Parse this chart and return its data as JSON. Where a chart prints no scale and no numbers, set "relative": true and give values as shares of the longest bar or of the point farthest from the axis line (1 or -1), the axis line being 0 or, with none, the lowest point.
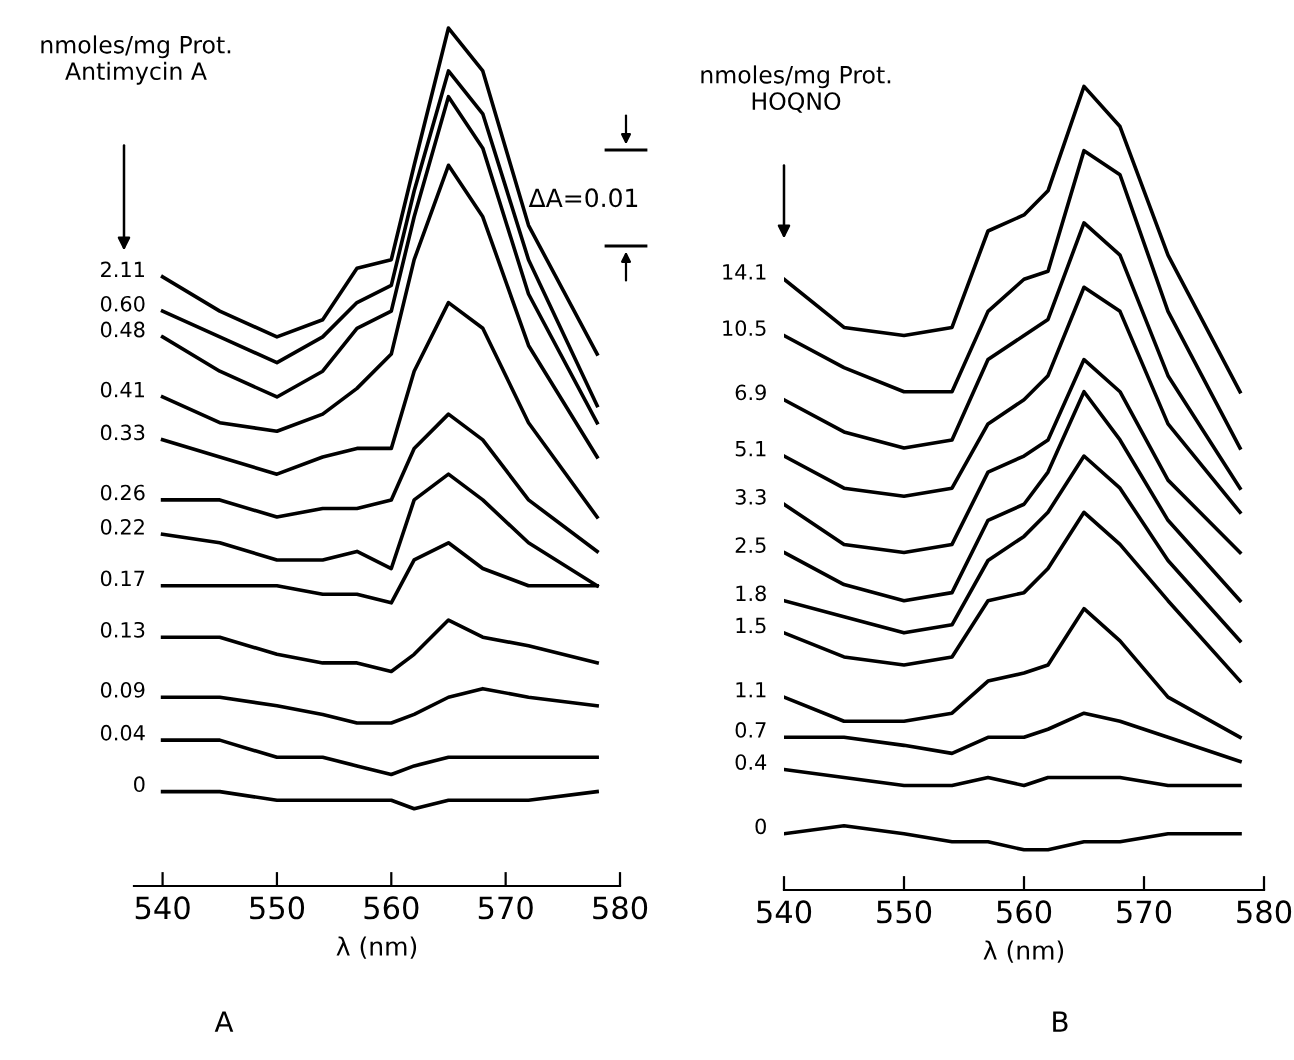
{
  "chart_data": [
    {
      "type": "line",
      "title": "A",
      "xlabel": "λ (nm)",
      "legend_title": "nmoles/mg Prot.\nAntimycin A",
      "annotations": [
        "ΔA=0.01"
      ],
      "relative": true,
      "xlim": [
        537.5,
        580
      ],
      "xticks": [
        540,
        550,
        560,
        570,
        580
      ],
      "line_style": "solid",
      "x": [
        540,
        545,
        550,
        554,
        557,
        560,
        562,
        565,
        568,
        572,
        578
      ],
      "series": [
        {
          "name": "2.11",
          "color": "#000000",
          "values": [
            0.71,
            0.67,
            0.64,
            0.66,
            0.72,
            0.73,
            0.84,
            1.0,
            0.95,
            0.77,
            0.62
          ]
        },
        {
          "name": "0.60",
          "color": "#000000",
          "values": [
            0.67,
            0.64,
            0.61,
            0.64,
            0.68,
            0.7,
            0.81,
            0.95,
            0.9,
            0.73,
            0.56
          ]
        },
        {
          "name": "0.48",
          "color": "#000000",
          "values": [
            0.64,
            0.6,
            0.57,
            0.6,
            0.65,
            0.67,
            0.78,
            0.92,
            0.86,
            0.69,
            0.54
          ]
        },
        {
          "name": "0.41",
          "color": "#000000",
          "values": [
            0.57,
            0.54,
            0.53,
            0.55,
            0.58,
            0.62,
            0.73,
            0.84,
            0.78,
            0.63,
            0.5
          ]
        },
        {
          "name": "0.33",
          "color": "#000000",
          "values": [
            0.52,
            0.5,
            0.48,
            0.5,
            0.51,
            0.51,
            0.6,
            0.68,
            0.65,
            0.54,
            0.43
          ]
        },
        {
          "name": "0.26",
          "color": "#000000",
          "values": [
            0.45,
            0.45,
            0.43,
            0.44,
            0.44,
            0.45,
            0.51,
            0.55,
            0.52,
            0.45,
            0.39
          ]
        },
        {
          "name": "0.22",
          "color": "#000000",
          "values": [
            0.41,
            0.4,
            0.38,
            0.38,
            0.39,
            0.37,
            0.45,
            0.48,
            0.45,
            0.4,
            0.35
          ]
        },
        {
          "name": "0.17",
          "color": "#000000",
          "values": [
            0.35,
            0.35,
            0.35,
            0.34,
            0.34,
            0.33,
            0.38,
            0.4,
            0.37,
            0.35,
            0.35
          ]
        },
        {
          "name": "0.13",
          "color": "#000000",
          "values": [
            0.29,
            0.29,
            0.27,
            0.26,
            0.26,
            0.25,
            0.27,
            0.31,
            0.29,
            0.28,
            0.26
          ]
        },
        {
          "name": "0.09",
          "color": "#000000",
          "values": [
            0.22,
            0.22,
            0.21,
            0.2,
            0.19,
            0.19,
            0.2,
            0.22,
            0.23,
            0.22,
            0.21
          ]
        },
        {
          "name": "0.04",
          "color": "#000000",
          "values": [
            0.17,
            0.17,
            0.15,
            0.15,
            0.14,
            0.13,
            0.14,
            0.15,
            0.15,
            0.15,
            0.15
          ]
        },
        {
          "name": "0",
          "color": "#000000",
          "values": [
            0.11,
            0.11,
            0.1,
            0.1,
            0.1,
            0.1,
            0.09,
            0.1,
            0.1,
            0.1,
            0.11
          ]
        }
      ]
    },
    {
      "type": "line",
      "title": "B",
      "xlabel": "λ (nm)",
      "legend_title": "nmoles/mg Prot.\nHOQNO",
      "relative": true,
      "xlim": [
        540,
        580
      ],
      "xticks": [
        540,
        550,
        560,
        570,
        580
      ],
      "line_style": "solid",
      "x": [
        540,
        545,
        550,
        554,
        557,
        560,
        562,
        565,
        568,
        572,
        578
      ],
      "series": [
        {
          "name": "14.1",
          "color": "#000000",
          "values": [
            0.76,
            0.7,
            0.69,
            0.7,
            0.82,
            0.84,
            0.87,
            1.0,
            0.95,
            0.79,
            0.62
          ]
        },
        {
          "name": "10.5",
          "color": "#000000",
          "values": [
            0.69,
            0.65,
            0.62,
            0.62,
            0.72,
            0.76,
            0.77,
            0.92,
            0.89,
            0.72,
            0.55
          ]
        },
        {
          "name": "6.9",
          "color": "#000000",
          "values": [
            0.61,
            0.57,
            0.55,
            0.56,
            0.66,
            0.69,
            0.71,
            0.83,
            0.79,
            0.64,
            0.5
          ]
        },
        {
          "name": "5.1",
          "color": "#000000",
          "values": [
            0.54,
            0.5,
            0.49,
            0.5,
            0.58,
            0.61,
            0.64,
            0.75,
            0.72,
            0.58,
            0.47
          ]
        },
        {
          "name": "3.3",
          "color": "#000000",
          "values": [
            0.48,
            0.43,
            0.42,
            0.43,
            0.52,
            0.54,
            0.56,
            0.66,
            0.62,
            0.51,
            0.42
          ]
        },
        {
          "name": "2.5",
          "color": "#000000",
          "values": [
            0.42,
            0.38,
            0.36,
            0.37,
            0.46,
            0.48,
            0.52,
            0.62,
            0.56,
            0.46,
            0.36
          ]
        },
        {
          "name": "1.8",
          "color": "#000000",
          "values": [
            0.36,
            0.34,
            0.32,
            0.33,
            0.41,
            0.44,
            0.47,
            0.54,
            0.5,
            0.41,
            0.31
          ]
        },
        {
          "name": "1.5",
          "color": "#000000",
          "values": [
            0.32,
            0.29,
            0.28,
            0.29,
            0.36,
            0.37,
            0.4,
            0.47,
            0.43,
            0.36,
            0.26
          ]
        },
        {
          "name": "1.1",
          "color": "#000000",
          "values": [
            0.24,
            0.21,
            0.21,
            0.22,
            0.26,
            0.27,
            0.28,
            0.35,
            0.31,
            0.24,
            0.19
          ]
        },
        {
          "name": "0.7",
          "color": "#000000",
          "values": [
            0.19,
            0.19,
            0.18,
            0.17,
            0.19,
            0.19,
            0.2,
            0.22,
            0.21,
            0.19,
            0.16
          ]
        },
        {
          "name": "0.4",
          "color": "#000000",
          "values": [
            0.15,
            0.14,
            0.13,
            0.13,
            0.14,
            0.13,
            0.14,
            0.14,
            0.14,
            0.13,
            0.13
          ]
        },
        {
          "name": "0",
          "color": "#000000",
          "values": [
            0.07,
            0.08,
            0.07,
            0.06,
            0.06,
            0.05,
            0.05,
            0.06,
            0.06,
            0.07,
            0.07
          ]
        }
      ]
    }
  ]
}
